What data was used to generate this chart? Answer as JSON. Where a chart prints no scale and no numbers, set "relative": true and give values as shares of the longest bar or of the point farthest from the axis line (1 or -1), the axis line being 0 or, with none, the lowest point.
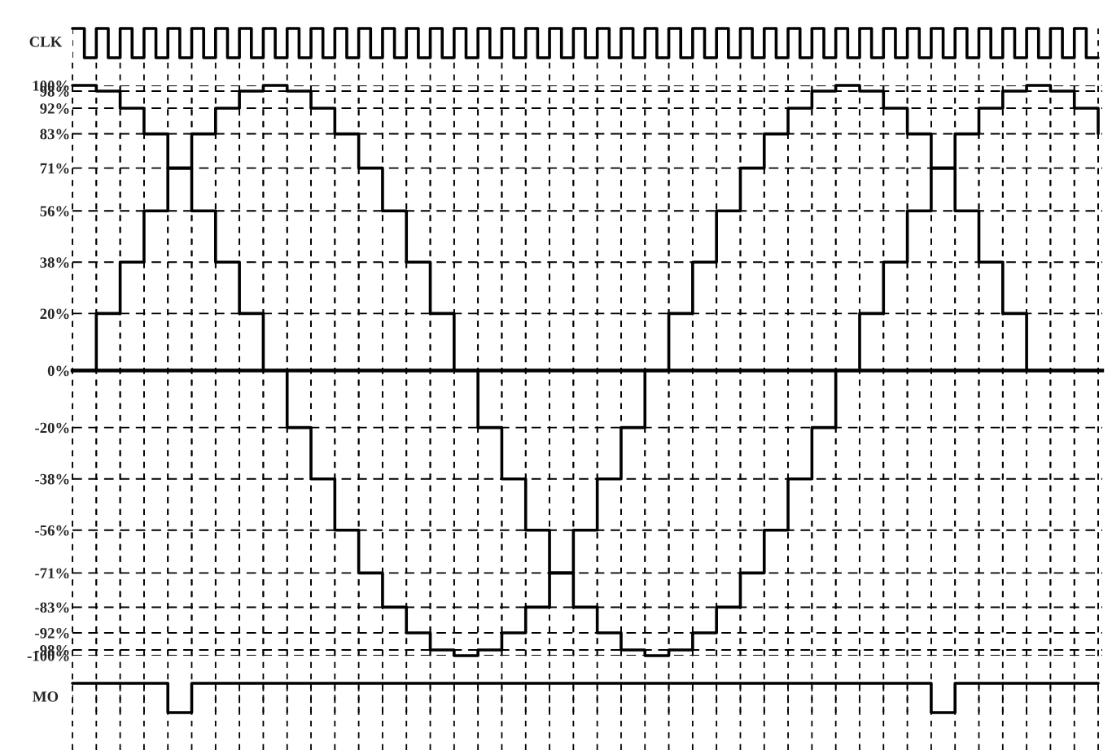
{
  "chart_data": [
    {
      "type": "step",
      "ylabel": "CLK",
      "relative": true,
      "color": "#000000",
      "grid": "x",
      "categories": [
        null,
        null,
        null,
        null,
        null,
        null,
        null,
        null,
        null,
        null,
        null,
        null,
        null,
        null,
        null,
        null,
        null,
        null,
        null,
        null,
        null,
        null,
        null,
        null,
        null,
        null,
        null,
        null,
        null,
        null,
        null,
        null,
        null,
        null,
        null,
        null,
        null,
        null,
        null,
        null,
        null,
        null,
        null,
        null,
        null,
        null,
        null,
        null,
        null,
        null,
        null,
        null,
        null,
        null,
        null,
        null,
        null,
        null,
        null,
        null,
        null,
        null,
        null,
        null,
        null,
        null,
        null,
        null,
        null,
        null,
        null,
        null,
        null,
        null,
        null,
        null,
        null,
        null,
        null,
        null,
        null,
        null,
        null,
        null,
        null,
        null,
        null
      ],
      "values": [
        1,
        0,
        1,
        0,
        1,
        0,
        1,
        0,
        1,
        0,
        1,
        0,
        1,
        0,
        1,
        0,
        1,
        0,
        1,
        0,
        1,
        0,
        1,
        0,
        1,
        0,
        1,
        0,
        1,
        0,
        1,
        0,
        1,
        0,
        1,
        0,
        1,
        0,
        1,
        0,
        1,
        0,
        1,
        0,
        1,
        0,
        1,
        0,
        1,
        0,
        1,
        0,
        1,
        0,
        1,
        0,
        1,
        0,
        1,
        0,
        1,
        0,
        1,
        0,
        1,
        0,
        1,
        0,
        1,
        0,
        1,
        0,
        1,
        0,
        1,
        0,
        1,
        0,
        1,
        0,
        1,
        0,
        1,
        0,
        1,
        0,
        0
      ]
    },
    {
      "type": "step",
      "grid": true,
      "tick_labels": "y",
      "line_style": "solid",
      "ylim": [
        -100,
        100
      ],
      "yticks": [
        {
          "value": -100,
          "label": "-100%"
        },
        {
          "value": -98,
          "label": "-98%"
        },
        {
          "value": -92,
          "label": "-92%"
        },
        {
          "value": -83,
          "label": "-83%"
        },
        {
          "value": -71,
          "label": "-71%"
        },
        {
          "value": -56,
          "label": "-56%"
        },
        {
          "value": -38,
          "label": "-38%"
        },
        {
          "value": -20,
          "label": "-20%"
        },
        {
          "value": 0,
          "label": "0%"
        },
        {
          "value": 20,
          "label": "20%"
        },
        {
          "value": 38,
          "label": "38%"
        },
        {
          "value": 56,
          "label": "56%"
        },
        {
          "value": 71,
          "label": "71%"
        },
        {
          "value": 83,
          "label": "83%"
        },
        {
          "value": 92,
          "label": "92%"
        },
        {
          "value": 98,
          "label": "98%"
        },
        {
          "value": 100,
          "label": "100%"
        }
      ],
      "categories": [
        null,
        null,
        null,
        null,
        null,
        null,
        null,
        null,
        null,
        null,
        null,
        null,
        null,
        null,
        null,
        null,
        null,
        null,
        null,
        null,
        null,
        null,
        null,
        null,
        null,
        null,
        null,
        null,
        null,
        null,
        null,
        null,
        null,
        null,
        null,
        null,
        null,
        null,
        null,
        null,
        null,
        null,
        null,
        null
      ],
      "series": [
        {
          "color": "#000000",
          "values": [
            100,
            98,
            92,
            83,
            71,
            56,
            38,
            20,
            0,
            -20,
            -38,
            -56,
            -71,
            -83,
            -92,
            -98,
            -100,
            -98,
            -92,
            -83,
            -71,
            -56,
            -38,
            -20,
            0,
            20,
            38,
            56,
            71,
            83,
            92,
            98,
            100,
            98,
            92,
            83,
            71,
            56,
            38,
            20,
            0,
            0,
            0,
            0
          ]
        },
        {
          "color": "#000000",
          "values": [
            0,
            20,
            38,
            56,
            71,
            83,
            92,
            98,
            100,
            98,
            92,
            83,
            71,
            56,
            38,
            20,
            0,
            -20,
            -38,
            -56,
            -71,
            -83,
            -92,
            -98,
            -100,
            -98,
            -92,
            -83,
            -71,
            -56,
            -38,
            -20,
            0,
            20,
            38,
            56,
            71,
            83,
            92,
            98,
            100,
            98,
            92,
            83
          ]
        }
      ]
    },
    {
      "type": "step",
      "ylabel": "MO",
      "relative": true,
      "color": "#000000",
      "grid": "x",
      "categories": [
        null,
        null,
        null,
        null,
        null,
        null,
        null,
        null,
        null,
        null,
        null,
        null,
        null,
        null,
        null,
        null,
        null,
        null,
        null,
        null,
        null,
        null,
        null,
        null,
        null,
        null,
        null,
        null,
        null,
        null,
        null,
        null,
        null,
        null,
        null,
        null,
        null,
        null,
        null,
        null,
        null,
        null,
        null,
        null
      ],
      "values": [
        1,
        1,
        1,
        1,
        0,
        1,
        1,
        1,
        1,
        1,
        1,
        1,
        1,
        1,
        1,
        1,
        1,
        1,
        1,
        1,
        1,
        1,
        1,
        1,
        1,
        1,
        1,
        1,
        1,
        1,
        1,
        1,
        1,
        1,
        1,
        1,
        0,
        1,
        1,
        1,
        1,
        1,
        1,
        1
      ]
    }
  ]
}
